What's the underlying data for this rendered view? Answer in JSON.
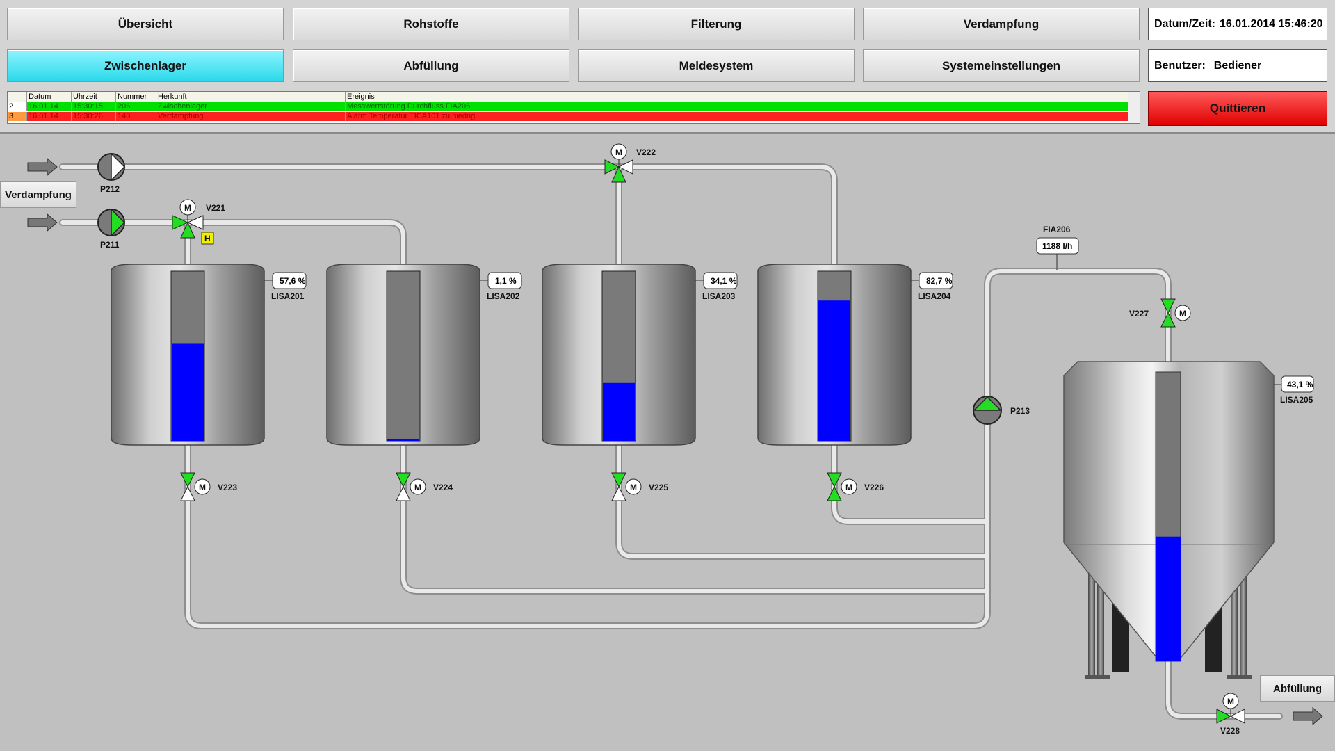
{
  "nav": {
    "row1": [
      "Übersicht",
      "Rohstoffe",
      "Filterung",
      "Verdampfung"
    ],
    "row2": [
      "Zwischenlager",
      "Abfüllung",
      "Meldesystem",
      "Systemeinstellungen"
    ],
    "active": "Zwischenlager"
  },
  "datetime": {
    "label": "Datum/Zeit:",
    "value": "16.01.2014 15:46:20"
  },
  "user": {
    "label": "Benutzer:",
    "value": "Bediener"
  },
  "acknowledge_label": "Quittieren",
  "messages": {
    "columns": [
      "",
      "Datum",
      "Uhrzeit",
      "Nummer",
      "Herkunft",
      "Ereignis"
    ],
    "rows": [
      {
        "nr": "2",
        "datum": "16.01.14",
        "uhrzeit": "15:30:15",
        "nummer": "206",
        "herkunft": "Zwischenlager",
        "ereignis": "Messwertstörung Durchfluss FIA206",
        "status_color": "#00e000"
      },
      {
        "nr": "3",
        "datum": "16.01.14",
        "uhrzeit": "15:30:26",
        "nummer": "143",
        "herkunft": "Verdampfung",
        "ereignis": "Alarm Temperatur TICA101 zu niedrig",
        "status_color": "#ff2020"
      }
    ]
  },
  "buttons": {
    "verdampfung": "Verdampfung",
    "abfuellung": "Abfüllung"
  },
  "pumps": {
    "P212": {
      "label": "P212",
      "running": false
    },
    "P211": {
      "label": "P211",
      "running": true
    },
    "P213": {
      "label": "P213",
      "running": true
    }
  },
  "valves": {
    "V221": "V221",
    "V222": "V222",
    "V223": "V223",
    "V224": "V224",
    "V225": "V225",
    "V226": "V226",
    "V227": "V227",
    "V228": "V228",
    "motor": "M",
    "hand_flag": "H"
  },
  "tanks": [
    {
      "tag": "LISA201",
      "level_text": "57,6 %",
      "level": 0.576
    },
    {
      "tag": "LISA202",
      "level_text": "1,1 %",
      "level": 0.011
    },
    {
      "tag": "LISA203",
      "level_text": "34,1 %",
      "level": 0.341
    },
    {
      "tag": "LISA204",
      "level_text": "82,7 %",
      "level": 0.827
    }
  ],
  "silo": {
    "tag": "LISA205",
    "level_text": "43,1 %",
    "level": 0.431
  },
  "flow": {
    "tag": "FIA206",
    "value": "1188 l/h"
  },
  "colors": {
    "liquid": "#0000ff",
    "valve_open": "#22dd22",
    "pipe": "#e8e8e8",
    "active_nav": "#3fe0f0"
  }
}
